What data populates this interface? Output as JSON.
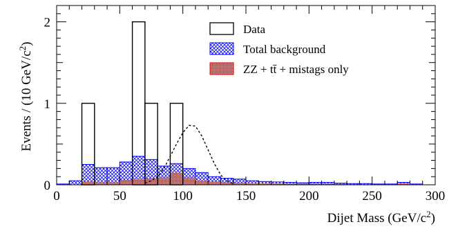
{
  "chart_data": {
    "type": "bar",
    "xlabel": "Dijet Mass (GeV/c",
    "xlabel_sup": "2",
    "xlabel_end": ")",
    "ylabel": "Events / (10 GeV/c",
    "ylabel_sup": "2",
    "ylabel_end": ")",
    "xlim": [
      0,
      300
    ],
    "ylim": [
      0,
      2.2
    ],
    "x_ticks": [
      0,
      50,
      100,
      150,
      200,
      250,
      300
    ],
    "y_ticks": [
      0,
      1,
      2
    ],
    "bin_width": 10,
    "bin_low_edges": [
      0,
      10,
      20,
      30,
      40,
      50,
      60,
      70,
      80,
      90,
      100,
      110,
      120,
      130,
      140,
      150,
      160,
      170,
      180,
      190,
      200,
      210,
      220,
      230,
      240,
      250,
      260,
      270,
      280,
      290
    ],
    "legend": {
      "position": "top-right",
      "entries": [
        "Data",
        "Total background",
        "ZZ + tt̄ + mistags only"
      ]
    },
    "series": [
      {
        "name": "Data",
        "style": "outline",
        "color": "#000000",
        "values": [
          0,
          0,
          1,
          0,
          0,
          0,
          2,
          1,
          0,
          1,
          0,
          0,
          0,
          0,
          0,
          0,
          0,
          0,
          0,
          0,
          0,
          0,
          0,
          0,
          0,
          0,
          0,
          0,
          0,
          0
        ]
      },
      {
        "name": "Total background",
        "style": "crosshatch",
        "color": "#0000ff",
        "values": [
          0.01,
          0.05,
          0.25,
          0.21,
          0.21,
          0.28,
          0.35,
          0.31,
          0.23,
          0.26,
          0.2,
          0.15,
          0.1,
          0.08,
          0.07,
          0.05,
          0.04,
          0.035,
          0.03,
          0.025,
          0.03,
          0.03,
          0.02,
          0.015,
          0.015,
          0.01,
          0.01,
          0.03,
          0.01,
          0.0
        ]
      },
      {
        "name": "ZZ + tt̄ + mistags only",
        "style": "dense-fill",
        "color": "#ff0000",
        "values": [
          0.0,
          0.0,
          0.04,
          0.03,
          0.03,
          0.06,
          0.07,
          0.08,
          0.09,
          0.15,
          0.09,
          0.05,
          0.04,
          0.03,
          0.025,
          0.02,
          0.018,
          0.015,
          0.012,
          0.01,
          0.01,
          0.01,
          0.008,
          0.006,
          0.005,
          0.004,
          0.004,
          0.02,
          0.004,
          0.0
        ]
      }
    ],
    "signal_curve": {
      "style": "dashed",
      "color": "#000000",
      "x": [
        70,
        75,
        80,
        85,
        90,
        95,
        100,
        105,
        110,
        115,
        120,
        125,
        130,
        135,
        140
      ],
      "values": [
        0.02,
        0.05,
        0.1,
        0.2,
        0.35,
        0.5,
        0.64,
        0.73,
        0.72,
        0.6,
        0.43,
        0.26,
        0.12,
        0.05,
        0.01
      ]
    }
  }
}
